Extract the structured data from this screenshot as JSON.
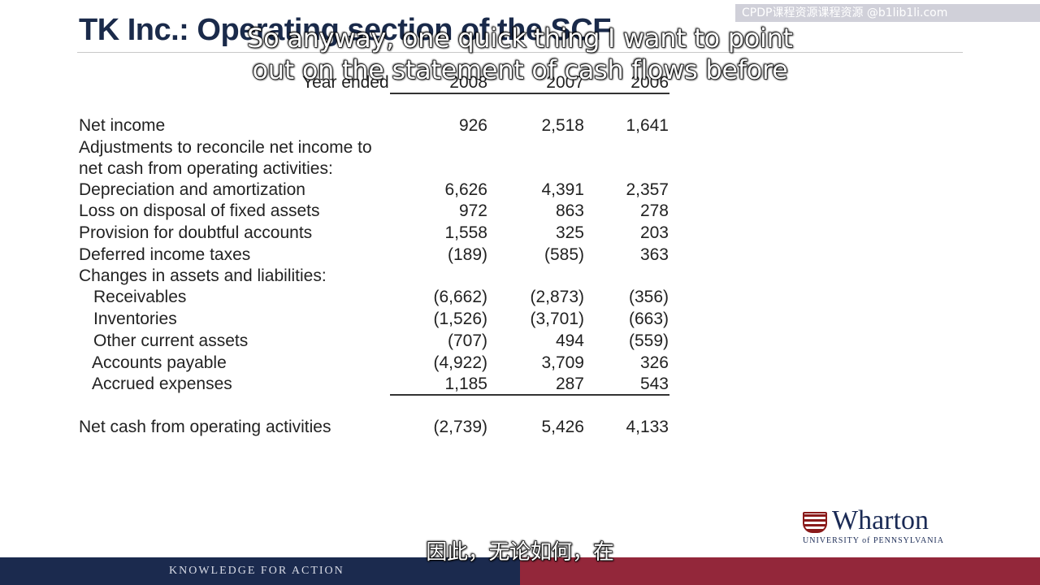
{
  "slide": {
    "title": "TK Inc.: Operating section of the SCF",
    "watermark": "CPDP课程资源课程资源 @b1lib1li.com",
    "year_label": "Year ended",
    "years": [
      "2008",
      "2007",
      "2006"
    ]
  },
  "rows": [
    {
      "label": "Net income",
      "values": [
        "926",
        "2,518",
        "1,641"
      ]
    },
    {
      "label": "Adjustments to reconcile net income to"
    },
    {
      "label": "net cash from operating activities:"
    },
    {
      "label": "Depreciation and amortization",
      "values": [
        "6,626",
        "4,391",
        "2,357"
      ]
    },
    {
      "label": "Loss on disposal of fixed assets",
      "values": [
        "972",
        "863",
        "278"
      ]
    },
    {
      "label": "Provision for doubtful accounts",
      "values": [
        "1,558",
        "325",
        "203"
      ]
    },
    {
      "label": "Deferred income taxes",
      "values": [
        "(189)",
        "(585)",
        "363"
      ]
    },
    {
      "label": "Changes in assets and liabilities:"
    },
    {
      "label": "Receivables",
      "values": [
        "(6,662)",
        "(2,873)",
        "(356)"
      ]
    },
    {
      "label": "Inventories",
      "values": [
        "(1,526)",
        "(3,701)",
        "(663)"
      ]
    },
    {
      "label": "Other current assets",
      "values": [
        "(707)",
        "494",
        "(559)"
      ]
    },
    {
      "label": "Accounts payable",
      "values": [
        "(4,922)",
        "3,709",
        "326"
      ]
    },
    {
      "label": "Accrued expenses",
      "values": [
        "1,185",
        "287",
        "543"
      ]
    },
    {
      "label": "Net cash from operating activities",
      "values": [
        "(2,739)",
        "5,426",
        "4,133"
      ]
    }
  ],
  "logo": {
    "name": "Wharton",
    "sub": "UNIVERSITY of PENNSYLVANIA"
  },
  "footer": {
    "tagline": "KNOWLEDGE FOR ACTION"
  },
  "subtitles": {
    "line1": "So anyway, one quick thing I want to point",
    "line2": "out on the statement of cash flows before",
    "chinese": "因此，无论如何，在"
  }
}
